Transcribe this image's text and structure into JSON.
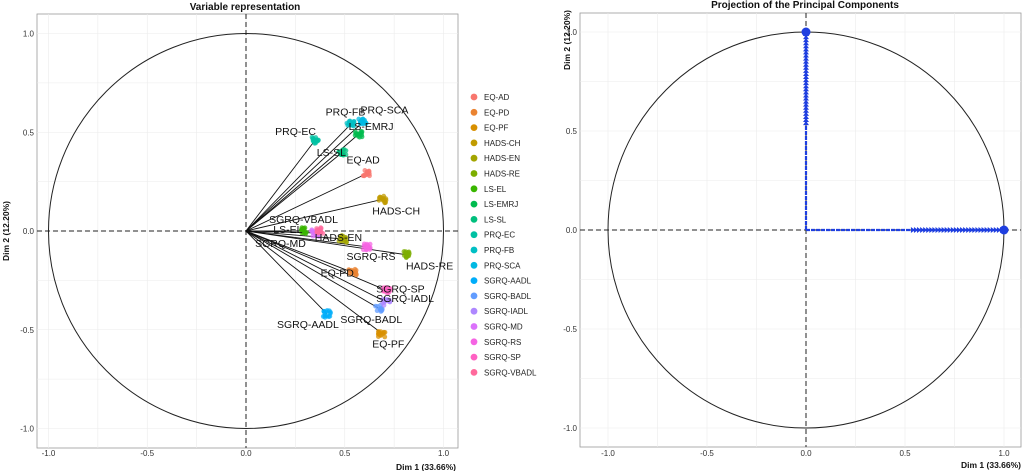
{
  "chart_data": [
    {
      "type": "scatter",
      "title": "Variable representation",
      "xlabel": "Dim 1 (33.66%)",
      "ylabel": "Dim 2 (12.20%)",
      "xlim": [
        -1.0,
        1.0
      ],
      "ylim": [
        -1.0,
        1.0
      ],
      "xticks": [
        "-1.0",
        "-0.5",
        "0.0",
        "0.5",
        "1.0"
      ],
      "yticks": [
        "-1.0",
        "-0.5",
        "0.0",
        "0.5",
        "1.0"
      ],
      "grid": true,
      "unit_circle": true,
      "legend": "right",
      "variables": [
        {
          "name": "EQ-AD",
          "label": "EQ-AD",
          "x": 0.61,
          "y": 0.29,
          "color": "#F8766D"
        },
        {
          "name": "EQ-PD",
          "label": "EQ-PD",
          "x": 0.54,
          "y": -0.21,
          "color": "#EA8331"
        },
        {
          "name": "EQ-PF",
          "label": "EQ-PF",
          "x": 0.69,
          "y": -0.52,
          "color": "#D89000"
        },
        {
          "name": "HADS-CH",
          "label": "HADS-CH",
          "x": 0.69,
          "y": 0.16,
          "color": "#C09B00"
        },
        {
          "name": "HADS-EN",
          "label": "HADS-EN",
          "x": 0.49,
          "y": -0.04,
          "color": "#A3A500"
        },
        {
          "name": "HADS-RE",
          "label": "HADS-RE",
          "x": 0.81,
          "y": -0.12,
          "color": "#7CAE00"
        },
        {
          "name": "LS-EL",
          "label": "LS-EL",
          "x": 0.29,
          "y": 0.0,
          "color": "#39B600"
        },
        {
          "name": "LS-EMRJ",
          "label": "LS-EMRJ",
          "x": 0.57,
          "y": 0.49,
          "color": "#00BB4E"
        },
        {
          "name": "LS-SL",
          "label": "LS-SL",
          "x": 0.49,
          "y": 0.4,
          "color": "#00BF7D"
        },
        {
          "name": "PRQ-EC",
          "label": "PRQ-EC",
          "x": 0.35,
          "y": 0.46,
          "color": "#00C1A3"
        },
        {
          "name": "PRQ-FB",
          "label": "PRQ-FB",
          "x": 0.53,
          "y": 0.54,
          "color": "#00BFC4"
        },
        {
          "name": "PRQ-SCA",
          "label": "PRQ-SCA",
          "x": 0.59,
          "y": 0.55,
          "color": "#00B9E3"
        },
        {
          "name": "SGRQ-AADL",
          "label": "SGRQ-AADL",
          "x": 0.41,
          "y": -0.42,
          "color": "#00ADFA"
        },
        {
          "name": "SGRQ-BADL",
          "label": "SGRQ-BADL",
          "x": 0.67,
          "y": -0.39,
          "color": "#619CFF"
        },
        {
          "name": "SGRQ-IADL",
          "label": "SGRQ-IADL",
          "x": 0.71,
          "y": -0.36,
          "color": "#AE87FF"
        },
        {
          "name": "SGRQ-MD",
          "label": "SGRQ-MD",
          "x": 0.35,
          "y": -0.01,
          "color": "#DB72FB"
        },
        {
          "name": "SGRQ-RS",
          "label": "SGRQ-RS",
          "x": 0.61,
          "y": -0.08,
          "color": "#F564E3"
        },
        {
          "name": "SGRQ-SP",
          "label": "SGRQ-SP",
          "x": 0.71,
          "y": -0.3,
          "color": "#FF61C3"
        },
        {
          "name": "SGRQ-VBADL",
          "label": "SGRQ-VBADL",
          "x": 0.37,
          "y": 0.0,
          "color": "#FF699C"
        }
      ]
    },
    {
      "type": "scatter",
      "title": "Projection of the Principal Components",
      "xlabel": "Dim 1 (33.66%)",
      "ylabel": "Dim 2 (12.20%)",
      "xlim": [
        -1.0,
        1.0
      ],
      "ylim": [
        -1.0,
        1.0
      ],
      "xticks": [
        "-1.0",
        "-0.5",
        "0.0",
        "0.5",
        "1.0"
      ],
      "yticks": [
        "-1.0",
        "-0.5",
        "0.0",
        "0.5",
        "1.0"
      ],
      "grid": true,
      "unit_circle": true,
      "arrow_color": "#1F3FE0",
      "components": [
        {
          "name": "Dim 1",
          "x": 1.0,
          "y": 0.0
        },
        {
          "name": "Dim 2",
          "x": 0.0,
          "y": 1.0
        }
      ]
    }
  ]
}
